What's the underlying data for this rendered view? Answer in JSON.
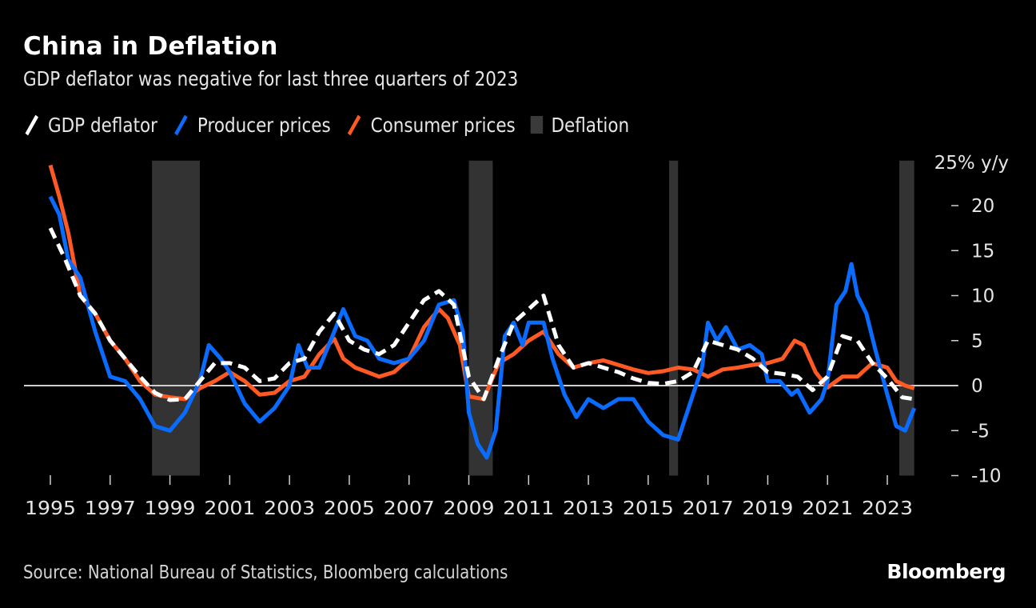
{
  "header": {
    "title": "China in Deflation",
    "subtitle": "GDP deflator was negative for last three quarters of 2023"
  },
  "legend": [
    {
      "label": "GDP deflator",
      "icon": "white-dashed-line-swatch",
      "color": "#ffffff"
    },
    {
      "label": "Producer prices",
      "icon": "blue-line-swatch",
      "color": "#0a6cff"
    },
    {
      "label": "Consumer prices",
      "icon": "orange-line-swatch",
      "color": "#ff5a24"
    },
    {
      "label": "Deflation",
      "icon": "gray-box-swatch",
      "color": "#333333"
    }
  ],
  "footer": {
    "source": "Source: National Bureau of Statistics, Bloomberg calculations",
    "brand": "Bloomberg"
  },
  "chart_data": {
    "type": "line",
    "title": "China in Deflation",
    "subtitle": "GDP deflator was negative for last three quarters of 2023",
    "xlabel": "",
    "ylabel": "% y/y",
    "y_unit_label": "25% y/y",
    "ylim": [
      -10,
      25
    ],
    "xlim": [
      1995,
      2024
    ],
    "y_ticks": [
      20,
      15,
      10,
      5,
      0,
      -5,
      -10
    ],
    "y_tick_labels": [
      "20",
      "15",
      "10",
      "5",
      "0",
      "-5",
      "-10"
    ],
    "x_ticks": [
      1995,
      1997,
      1999,
      2001,
      2003,
      2005,
      2007,
      2009,
      2011,
      2013,
      2015,
      2017,
      2019,
      2021,
      2023
    ],
    "x_tick_labels": [
      "1995",
      "1997",
      "1999",
      "2001",
      "2003",
      "2005",
      "2007",
      "2009",
      "2011",
      "2013",
      "2015",
      "2017",
      "2019",
      "2021",
      "2023"
    ],
    "zero_line": true,
    "grid": false,
    "legend_position": "top-left",
    "shaded_periods": {
      "name": "Deflation",
      "color": "#333333",
      "ranges": [
        [
          1998.4,
          2000.0
        ],
        [
          2009.0,
          2009.8
        ],
        [
          2015.7,
          2016.0
        ],
        [
          2023.4,
          2023.9
        ]
      ]
    },
    "series": [
      {
        "name": "GDP deflator",
        "color": "#ffffff",
        "style": "dashed",
        "x": [
          1995.0,
          1995.5,
          1996.0,
          1996.5,
          1997.0,
          1997.5,
          1998.0,
          1998.5,
          1999.0,
          1999.5,
          2000.0,
          2000.5,
          2001.0,
          2001.5,
          2002.0,
          2002.5,
          2003.0,
          2003.5,
          2004.0,
          2004.5,
          2005.0,
          2005.5,
          2006.0,
          2006.5,
          2007.0,
          2007.5,
          2008.0,
          2008.5,
          2009.0,
          2009.5,
          2010.0,
          2010.5,
          2011.0,
          2011.5,
          2012.0,
          2012.5,
          2013.0,
          2013.5,
          2014.0,
          2014.5,
          2015.0,
          2015.5,
          2016.0,
          2016.5,
          2017.0,
          2017.5,
          2018.0,
          2018.5,
          2019.0,
          2019.5,
          2020.0,
          2020.5,
          2021.0,
          2021.5,
          2022.0,
          2022.5,
          2023.0,
          2023.5,
          2023.9
        ],
        "y": [
          17.5,
          14.0,
          10.0,
          8.0,
          5.0,
          3.0,
          1.0,
          -0.8,
          -1.6,
          -1.5,
          0.5,
          2.5,
          2.5,
          2.0,
          0.5,
          0.8,
          2.5,
          3.0,
          6.0,
          8.0,
          5.0,
          4.0,
          3.5,
          4.5,
          7.0,
          9.5,
          10.5,
          9.0,
          1.0,
          -1.5,
          3.0,
          7.0,
          8.5,
          10.0,
          4.5,
          2.0,
          2.5,
          2.0,
          1.5,
          0.8,
          0.3,
          0.2,
          0.5,
          1.5,
          5.0,
          4.5,
          4.0,
          3.0,
          1.5,
          1.3,
          1.0,
          -0.5,
          1.0,
          5.5,
          5.0,
          2.5,
          0.8,
          -1.3,
          -1.5
        ]
      },
      {
        "name": "Producer prices",
        "color": "#0a6cff",
        "style": "solid",
        "x": [
          1995.0,
          1995.3,
          1995.6,
          1996.0,
          1996.5,
          1997.0,
          1997.5,
          1998.0,
          1998.5,
          1999.0,
          1999.5,
          2000.0,
          2000.3,
          2000.7,
          2001.0,
          2001.5,
          2002.0,
          2002.5,
          2003.0,
          2003.3,
          2003.6,
          2004.0,
          2004.5,
          2004.8,
          2005.2,
          2005.6,
          2006.0,
          2006.5,
          2007.0,
          2007.5,
          2008.0,
          2008.5,
          2008.8,
          2009.0,
          2009.3,
          2009.6,
          2009.9,
          2010.2,
          2010.5,
          2010.8,
          2011.0,
          2011.5,
          2011.8,
          2012.2,
          2012.6,
          2013.0,
          2013.5,
          2014.0,
          2014.5,
          2015.0,
          2015.5,
          2016.0,
          2016.5,
          2016.8,
          2017.0,
          2017.3,
          2017.6,
          2018.0,
          2018.4,
          2018.8,
          2019.0,
          2019.4,
          2019.8,
          2020.0,
          2020.4,
          2020.8,
          2021.0,
          2021.3,
          2021.6,
          2021.8,
          2022.0,
          2022.3,
          2022.6,
          2023.0,
          2023.3,
          2023.6,
          2023.9
        ],
        "y": [
          21.0,
          19.0,
          14.0,
          12.0,
          6.0,
          1.0,
          0.5,
          -1.5,
          -4.5,
          -5.0,
          -3.0,
          0.5,
          4.5,
          3.0,
          1.5,
          -2.0,
          -4.0,
          -2.5,
          0.0,
          4.5,
          2.0,
          2.0,
          6.0,
          8.5,
          5.5,
          5.0,
          3.0,
          2.5,
          3.0,
          5.0,
          9.0,
          9.5,
          6.0,
          -3.0,
          -6.5,
          -8.0,
          -5.0,
          5.5,
          7.0,
          4.5,
          7.0,
          7.0,
          3.0,
          -1.0,
          -3.5,
          -1.5,
          -2.5,
          -1.5,
          -1.5,
          -4.0,
          -5.5,
          -6.0,
          -1.0,
          2.0,
          7.0,
          5.0,
          6.5,
          4.0,
          4.5,
          3.5,
          0.5,
          0.5,
          -1.0,
          -0.5,
          -3.0,
          -1.5,
          0.5,
          9.0,
          10.5,
          13.5,
          10.0,
          8.0,
          4.0,
          -1.0,
          -4.5,
          -5.0,
          -2.5
        ]
      },
      {
        "name": "Consumer prices",
        "color": "#ff5a24",
        "style": "solid",
        "x": [
          1995.0,
          1995.3,
          1995.6,
          1996.0,
          1996.5,
          1997.0,
          1997.5,
          1998.0,
          1998.5,
          1999.0,
          1999.5,
          2000.0,
          2000.5,
          2001.0,
          2001.5,
          2002.0,
          2002.5,
          2003.0,
          2003.5,
          2004.0,
          2004.5,
          2004.8,
          2005.2,
          2005.6,
          2006.0,
          2006.5,
          2007.0,
          2007.5,
          2008.0,
          2008.3,
          2008.7,
          2009.0,
          2009.5,
          2010.0,
          2010.5,
          2011.0,
          2011.5,
          2012.0,
          2012.5,
          2013.0,
          2013.5,
          2014.0,
          2014.5,
          2015.0,
          2015.5,
          2016.0,
          2016.5,
          2017.0,
          2017.5,
          2018.0,
          2018.5,
          2019.0,
          2019.5,
          2019.9,
          2020.2,
          2020.6,
          2021.0,
          2021.5,
          2022.0,
          2022.5,
          2023.0,
          2023.3,
          2023.6,
          2023.9
        ],
        "y": [
          24.5,
          21.0,
          17.0,
          10.0,
          8.0,
          5.0,
          3.0,
          0.5,
          -1.0,
          -1.3,
          -1.5,
          -0.3,
          0.5,
          1.5,
          0.5,
          -1.0,
          -0.8,
          0.5,
          1.0,
          3.5,
          5.2,
          3.0,
          2.0,
          1.5,
          1.0,
          1.5,
          3.0,
          6.5,
          8.5,
          7.5,
          4.5,
          -1.2,
          -1.5,
          2.5,
          3.5,
          5.0,
          6.0,
          3.5,
          2.0,
          2.5,
          2.8,
          2.3,
          1.8,
          1.4,
          1.6,
          2.0,
          1.8,
          1.0,
          1.8,
          2.0,
          2.3,
          2.5,
          3.0,
          5.0,
          4.5,
          1.5,
          -0.2,
          1.0,
          1.0,
          2.5,
          2.0,
          0.5,
          0.0,
          -0.3
        ]
      }
    ]
  }
}
